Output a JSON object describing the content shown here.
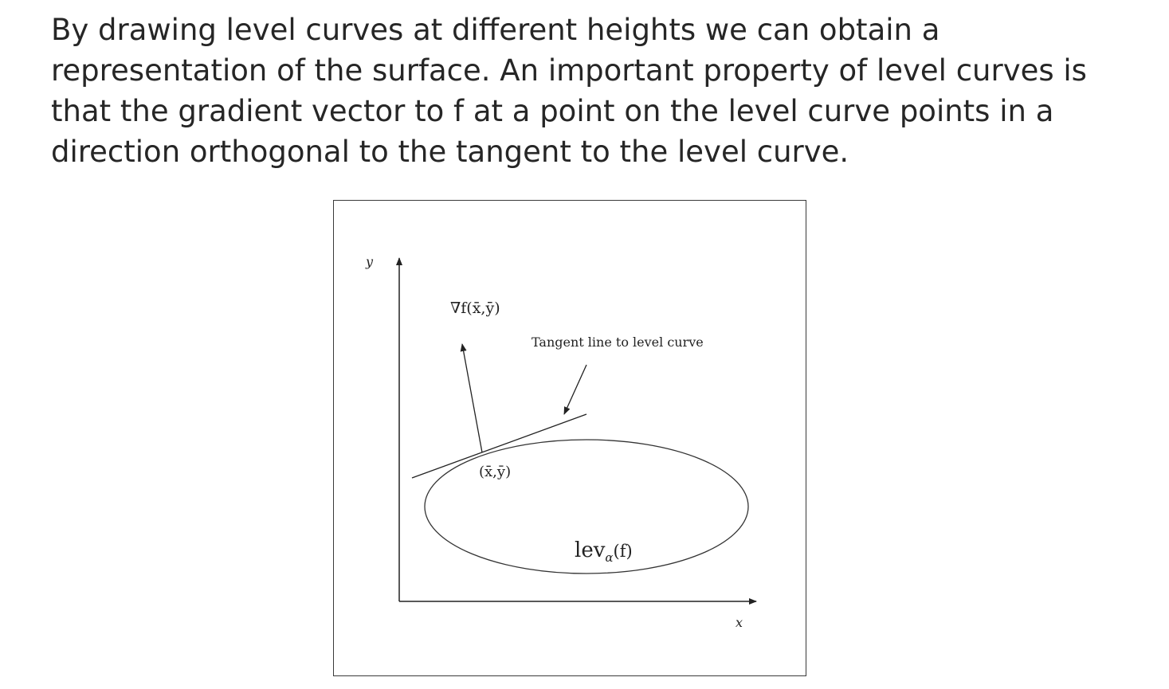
{
  "paragraph": {
    "lines": [
      "By drawing level curves at different heights we can obtain a",
      "representation of the surface. An important property of level curves is",
      "that the gradient vector to f at a point on the level curve points in a",
      "direction orthogonal to the tangent to the level curve."
    ]
  },
  "figure": {
    "y_axis_label": "y",
    "x_axis_label": "x",
    "gradient_label": "∇f(x̄,ȳ)",
    "tangent_label": "Tangent line to level curve",
    "point_label": "(x̄,ȳ)",
    "level_set_label_main": "lev",
    "level_set_label_sub": "α",
    "level_set_label_arg": "(f)"
  }
}
